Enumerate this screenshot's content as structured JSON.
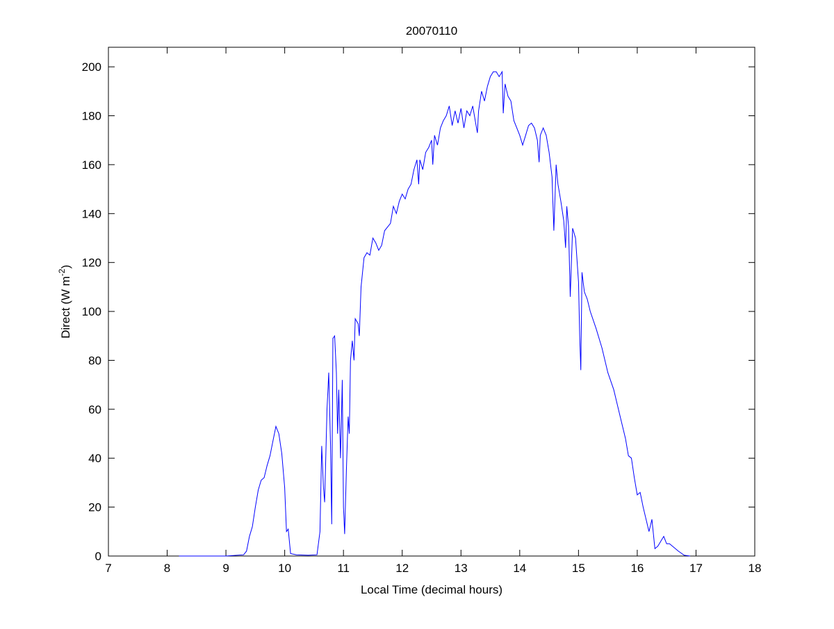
{
  "chart_data": {
    "type": "line",
    "title": "20070110",
    "xlabel": "Local Time (decimal hours)",
    "ylabel": "Direct (W m",
    "ylabel_sup": "-2",
    "ylabel_end": ")",
    "xlim": [
      7,
      18
    ],
    "ylim": [
      0,
      208
    ],
    "xticks": [
      7,
      8,
      9,
      10,
      11,
      12,
      13,
      14,
      15,
      16,
      17,
      18
    ],
    "yticks": [
      0,
      20,
      40,
      60,
      80,
      100,
      120,
      140,
      160,
      180,
      200
    ],
    "grid": false,
    "line_color": "#0000ff",
    "series": [
      {
        "name": "Direct",
        "x": [
          8.2,
          9.0,
          9.3,
          9.35,
          9.4,
          9.45,
          9.5,
          9.55,
          9.6,
          9.65,
          9.7,
          9.75,
          9.8,
          9.85,
          9.9,
          9.95,
          10.0,
          10.03,
          10.06,
          10.1,
          10.2,
          10.4,
          10.55,
          10.6,
          10.63,
          10.66,
          10.68,
          10.72,
          10.75,
          10.78,
          10.8,
          10.82,
          10.85,
          10.88,
          10.9,
          10.92,
          10.95,
          10.98,
          11.0,
          11.02,
          11.05,
          11.08,
          11.1,
          11.12,
          11.15,
          11.18,
          11.2,
          11.25,
          11.27,
          11.3,
          11.35,
          11.4,
          11.45,
          11.5,
          11.55,
          11.6,
          11.65,
          11.7,
          11.8,
          11.85,
          11.9,
          11.95,
          12.0,
          12.05,
          12.1,
          12.15,
          12.2,
          12.25,
          12.28,
          12.3,
          12.35,
          12.4,
          12.45,
          12.5,
          12.52,
          12.55,
          12.6,
          12.65,
          12.7,
          12.75,
          12.8,
          12.85,
          12.9,
          12.95,
          13.0,
          13.05,
          13.1,
          13.15,
          13.2,
          13.25,
          13.28,
          13.3,
          13.35,
          13.4,
          13.45,
          13.5,
          13.55,
          13.6,
          13.65,
          13.7,
          13.72,
          13.75,
          13.8,
          13.85,
          13.9,
          13.95,
          14.0,
          14.05,
          14.1,
          14.15,
          14.2,
          14.25,
          14.3,
          14.33,
          14.35,
          14.4,
          14.45,
          14.5,
          14.55,
          14.58,
          14.62,
          14.65,
          14.7,
          14.75,
          14.78,
          14.8,
          14.83,
          14.86,
          14.9,
          14.95,
          15.0,
          15.02,
          15.04,
          15.06,
          15.1,
          15.15,
          15.2,
          15.3,
          15.4,
          15.5,
          15.6,
          15.7,
          15.8,
          15.85,
          15.9,
          15.95,
          16.0,
          16.05,
          16.1,
          16.15,
          16.2,
          16.25,
          16.3,
          16.35,
          16.4,
          16.45,
          16.5,
          16.55,
          16.6,
          16.7,
          16.8,
          16.9
        ],
        "y": [
          0,
          0,
          0.5,
          2,
          8,
          12,
          20,
          27,
          31,
          32,
          37,
          41,
          47,
          53,
          50,
          42,
          28,
          10,
          11,
          1,
          0.5,
          0.3,
          0.5,
          10,
          45,
          28,
          22,
          60,
          75,
          45,
          13,
          89,
          90,
          75,
          50,
          68,
          40,
          72,
          20,
          9,
          35,
          57,
          50,
          80,
          88,
          80,
          97,
          95,
          90,
          110,
          122,
          124,
          123,
          130,
          128,
          125,
          127,
          133,
          136,
          143,
          140,
          145,
          148,
          146,
          150,
          152,
          158,
          162,
          152,
          162,
          158,
          165,
          167,
          170,
          160,
          172,
          168,
          175,
          178,
          180,
          184,
          176,
          182,
          177,
          183,
          175,
          182,
          180,
          184,
          177,
          173,
          182,
          190,
          186,
          192,
          196,
          198,
          198,
          196,
          198,
          181,
          193,
          188,
          186,
          178,
          175,
          172,
          168,
          172,
          176,
          177,
          175,
          170,
          161,
          172,
          175,
          172,
          165,
          155,
          133,
          160,
          152,
          145,
          137,
          126,
          143,
          135,
          106,
          134,
          130,
          112,
          90,
          76,
          116,
          108,
          105,
          100,
          93,
          85,
          75,
          68,
          58,
          48,
          41,
          40,
          32,
          25,
          26,
          20,
          15,
          10,
          15,
          3,
          4,
          6,
          8,
          5,
          5,
          4,
          2,
          0.3,
          0
        ]
      }
    ]
  }
}
